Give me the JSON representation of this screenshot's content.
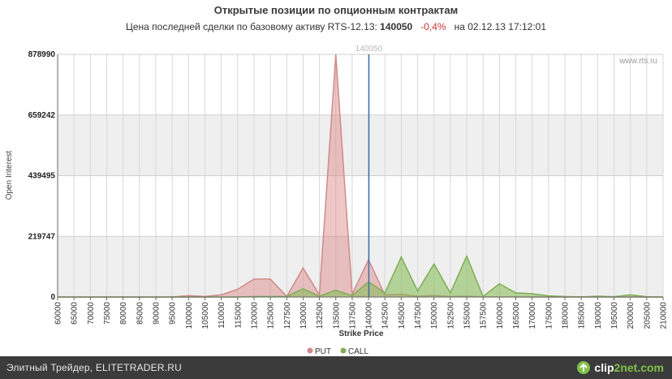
{
  "title": "Открытые позиции по опционным контрактам",
  "subtitle": {
    "prefix": "Цена последней сделки по базовому активу RTS-12.13:",
    "last_price": "140050",
    "change": "-0,4%",
    "date_text": "на 02.12.13 17:12:01"
  },
  "watermark": "www.rts.ru",
  "colors": {
    "put_fill": "rgba(220,130,130,0.45)",
    "put_line": "#d08a8a",
    "call_fill": "rgba(130,185,80,0.55)",
    "call_line": "#7fae55",
    "price_line": "#3b6ea5",
    "band": "#efefef",
    "footer_bg": "#3b3b3b",
    "logo_accent": "#7fc04a"
  },
  "footer": {
    "text": "Элитный Трейдер, ELITETRADER.RU",
    "logo_prefix": "clip",
    "logo_suffix": "2net.com"
  },
  "chart_data": {
    "type": "area",
    "xlabel": "Strike Price",
    "ylabel": "Open Interest",
    "y_ticks": [
      "0",
      "219747",
      "439495",
      "659242",
      "878990"
    ],
    "ylim": [
      0,
      878990
    ],
    "current_price": 140050,
    "current_price_label": "140050",
    "grid": true,
    "legend_position": "bottom-center",
    "x": [
      60000,
      65000,
      70000,
      75000,
      80000,
      85000,
      90000,
      95000,
      100000,
      105000,
      110000,
      115000,
      120000,
      125000,
      127500,
      130000,
      132500,
      135000,
      137500,
      140000,
      142500,
      145000,
      147500,
      150000,
      152500,
      155000,
      157500,
      160000,
      165000,
      170000,
      175000,
      180000,
      185000,
      190000,
      195000,
      200000,
      205000,
      210000
    ],
    "series": [
      {
        "name": "PUT",
        "values": [
          0,
          0,
          0,
          0,
          0,
          0,
          0,
          0,
          5000,
          2000,
          8000,
          28000,
          65000,
          65000,
          2000,
          105000,
          8000,
          878990,
          10000,
          135000,
          8000,
          10000,
          3000,
          6000,
          2000,
          3000,
          500,
          500,
          500,
          0,
          0,
          0,
          0,
          0,
          0,
          0,
          0,
          0
        ]
      },
      {
        "name": "CALL",
        "values": [
          0,
          0,
          0,
          0,
          0,
          0,
          0,
          0,
          0,
          0,
          0,
          0,
          2000,
          2000,
          2000,
          30000,
          3000,
          25000,
          5000,
          55000,
          15000,
          145000,
          22000,
          120000,
          15000,
          148000,
          2000,
          48000,
          15000,
          12000,
          4000,
          2000,
          500,
          3000,
          1000,
          8000,
          1000,
          0
        ]
      }
    ]
  }
}
